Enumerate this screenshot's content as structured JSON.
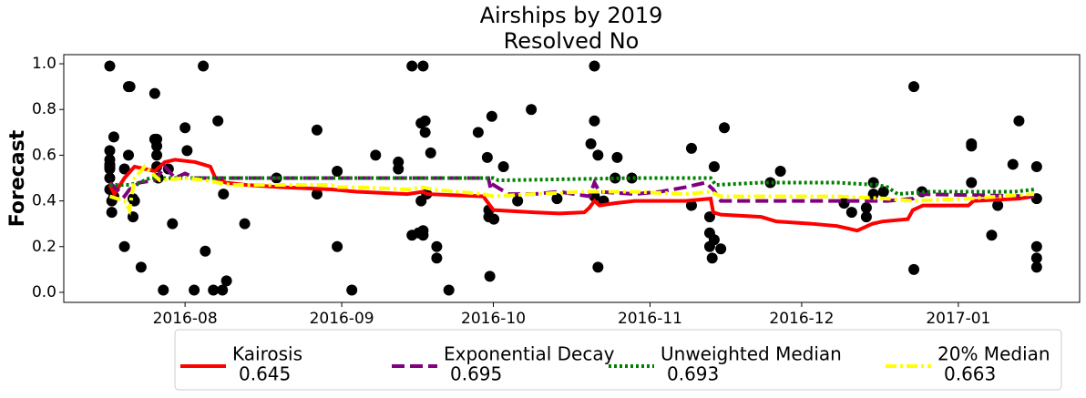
{
  "chart_data": {
    "type": "line",
    "title": "Airships by 2019",
    "subtitle": "Resolved No",
    "y_label": "Forecast",
    "xlim": [
      7,
      208
    ],
    "xticks": [
      {
        "value": 31,
        "label": "2016-08"
      },
      {
        "value": 62,
        "label": "2016-09"
      },
      {
        "value": 92,
        "label": "2016-10"
      },
      {
        "value": 123,
        "label": "2016-11"
      },
      {
        "value": 153,
        "label": "2016-12"
      },
      {
        "value": 184,
        "label": "2017-01"
      }
    ],
    "ylim": [
      -0.044,
      1.04
    ],
    "yticks": [
      {
        "value": 0,
        "label": "0.0"
      },
      0.2,
      0.4,
      0.6,
      0.8,
      {
        "value": 1,
        "label": "1.0"
      }
    ],
    "legend": "bottom",
    "scatter": {
      "color": "#000000",
      "x": [
        16.1,
        16.1,
        16.1,
        16.1,
        16.1,
        16.1,
        16.1,
        16.1,
        16.5,
        16.5,
        16.9,
        16.9,
        19.0,
        19.0,
        19.8,
        19.8,
        20.1,
        20.7,
        20.7,
        21.0,
        22.3,
        25.0,
        25.0,
        25.4,
        25.4,
        25.4,
        25.4,
        25.7,
        26.7,
        27.7,
        28.5,
        31.0,
        31.4,
        32.8,
        34.6,
        35.0,
        36.6,
        37.5,
        38.4,
        38.6,
        39.2,
        42.8,
        49.1,
        57.1,
        57.1,
        61.1,
        61.1,
        64.0,
        68.7,
        73.2,
        73.2,
        75.9,
        75.9,
        77.2,
        77.7,
        77.7,
        78.1,
        78.1,
        78.1,
        78.5,
        78.5,
        78.8,
        79.6,
        80.8,
        80.8,
        83.2,
        89.0,
        90.8,
        91.1,
        91.1,
        91.3,
        91.7,
        92.1,
        94.0,
        96.8,
        99.5,
        104.6,
        111.3,
        112.0,
        112.0,
        112.0,
        112.7,
        112.7,
        113.8,
        116.1,
        116.5,
        119.4,
        131.2,
        131.2,
        134.8,
        134.8,
        134.8,
        135.3,
        135.7,
        135.7,
        137.0,
        137.7,
        146.8,
        148.8,
        161.4,
        162.9,
        165.8,
        165.8,
        167.2,
        167.2,
        169.2,
        175.2,
        175.2,
        176.8,
        186.6,
        186.6,
        186.6,
        190.6,
        191.8,
        194.8,
        196.0,
        199.5,
        199.5,
        199.5,
        199.5,
        199.5
      ],
      "values": [
        0.99,
        0.62,
        0.58,
        0.56,
        0.55,
        0.54,
        0.5,
        0.45,
        0.35,
        0.4,
        0.68,
        0.42,
        0.2,
        0.54,
        0.6,
        0.9,
        0.9,
        0.33,
        0.41,
        0.4,
        0.11,
        0.87,
        0.67,
        0.67,
        0.64,
        0.6,
        0.55,
        0.5,
        0.01,
        0.54,
        0.3,
        0.72,
        0.62,
        0.01,
        0.99,
        0.18,
        0.01,
        0.75,
        0.01,
        0.43,
        0.05,
        0.3,
        0.5,
        0.71,
        0.43,
        0.53,
        0.2,
        0.01,
        0.6,
        0.57,
        0.54,
        0.99,
        0.25,
        0.26,
        0.74,
        0.4,
        0.99,
        0.27,
        0.25,
        0.75,
        0.7,
        0.43,
        0.61,
        0.15,
        0.2,
        0.01,
        0.7,
        0.59,
        0.33,
        0.36,
        0.07,
        0.77,
        0.32,
        0.55,
        0.4,
        0.8,
        0.41,
        0.65,
        0.99,
        0.75,
        0.42,
        0.6,
        0.11,
        0.4,
        0.5,
        0.59,
        0.5,
        0.63,
        0.38,
        0.33,
        0.26,
        0.2,
        0.15,
        0.55,
        0.23,
        0.19,
        0.72,
        0.48,
        0.53,
        0.39,
        0.35,
        0.33,
        0.37,
        0.43,
        0.48,
        0.44,
        0.9,
        0.1,
        0.44,
        0.65,
        0.64,
        0.48,
        0.25,
        0.38,
        0.56,
        0.75,
        0.55,
        0.41,
        0.2,
        0.15,
        0.11
      ]
    },
    "series": [
      {
        "name": "Kairosis",
        "score": 0.645,
        "color": "#ff0000",
        "style": "solid",
        "x": [
          16.1,
          17,
          19,
          21,
          25,
          27,
          29,
          33,
          36,
          37,
          39,
          43,
          50,
          60,
          65,
          75,
          78,
          79,
          90,
          92,
          100,
          105,
          110,
          111,
          112,
          113,
          116,
          120,
          130,
          135,
          135.5,
          137,
          145,
          148,
          155,
          160,
          162,
          164,
          165,
          167,
          169,
          174,
          175,
          177,
          186,
          187,
          196,
          199
        ],
        "values": [
          0.47,
          0.43,
          0.5,
          0.55,
          0.53,
          0.57,
          0.58,
          0.57,
          0.55,
          0.5,
          0.48,
          0.47,
          0.46,
          0.45,
          0.44,
          0.43,
          0.44,
          0.43,
          0.42,
          0.36,
          0.35,
          0.345,
          0.35,
          0.37,
          0.4,
          0.38,
          0.39,
          0.4,
          0.4,
          0.41,
          0.35,
          0.34,
          0.33,
          0.31,
          0.3,
          0.29,
          0.28,
          0.27,
          0.28,
          0.3,
          0.31,
          0.32,
          0.36,
          0.38,
          0.38,
          0.4,
          0.41,
          0.42
        ]
      },
      {
        "name": "Exponential Decay",
        "score": 0.695,
        "color": "#800080",
        "style": "dashed",
        "x": [
          16.1,
          19,
          20,
          22,
          25,
          27,
          29,
          31,
          33,
          36,
          91,
          91.5,
          92,
          95,
          100,
          105,
          111,
          112,
          113,
          120,
          125,
          130,
          134,
          135.5,
          137,
          160,
          170,
          175,
          176,
          199
        ],
        "values": [
          0.48,
          0.42,
          0.45,
          0.48,
          0.49,
          0.55,
          0.5,
          0.52,
          0.5,
          0.5,
          0.5,
          0.45,
          0.47,
          0.43,
          0.43,
          0.44,
          0.42,
          0.48,
          0.44,
          0.43,
          0.44,
          0.46,
          0.48,
          0.45,
          0.4,
          0.4,
          0.4,
          0.41,
          0.43,
          0.42
        ]
      },
      {
        "name": "Unweighted Median",
        "score": 0.693,
        "color": "#008000",
        "style": "dotted",
        "x": [
          16.1,
          20,
          22,
          24,
          36,
          92,
          93,
          120,
          135,
          136,
          145,
          160,
          168,
          170,
          172,
          178,
          186,
          195,
          199
        ],
        "values": [
          0.47,
          0.47,
          0.48,
          0.5,
          0.5,
          0.5,
          0.49,
          0.5,
          0.5,
          0.47,
          0.48,
          0.48,
          0.47,
          0.46,
          0.43,
          0.44,
          0.44,
          0.44,
          0.45
        ]
      },
      {
        "name": "20% Median",
        "score": 0.663,
        "color": "#ffff00",
        "style": "dashdot",
        "x": [
          16.1,
          19,
          20,
          21,
          23,
          26,
          31,
          35,
          40,
          60,
          61,
          65,
          75,
          78,
          80,
          90,
          92,
          100,
          110,
          120,
          130,
          135,
          137,
          160,
          170,
          175,
          186,
          199
        ],
        "values": [
          0.42,
          0.4,
          0.36,
          0.5,
          0.55,
          0.49,
          0.5,
          0.49,
          0.47,
          0.47,
          0.46,
          0.46,
          0.45,
          0.46,
          0.45,
          0.43,
          0.42,
          0.43,
          0.44,
          0.44,
          0.43,
          0.44,
          0.42,
          0.42,
          0.41,
          0.4,
          0.41,
          0.43
        ]
      }
    ]
  }
}
